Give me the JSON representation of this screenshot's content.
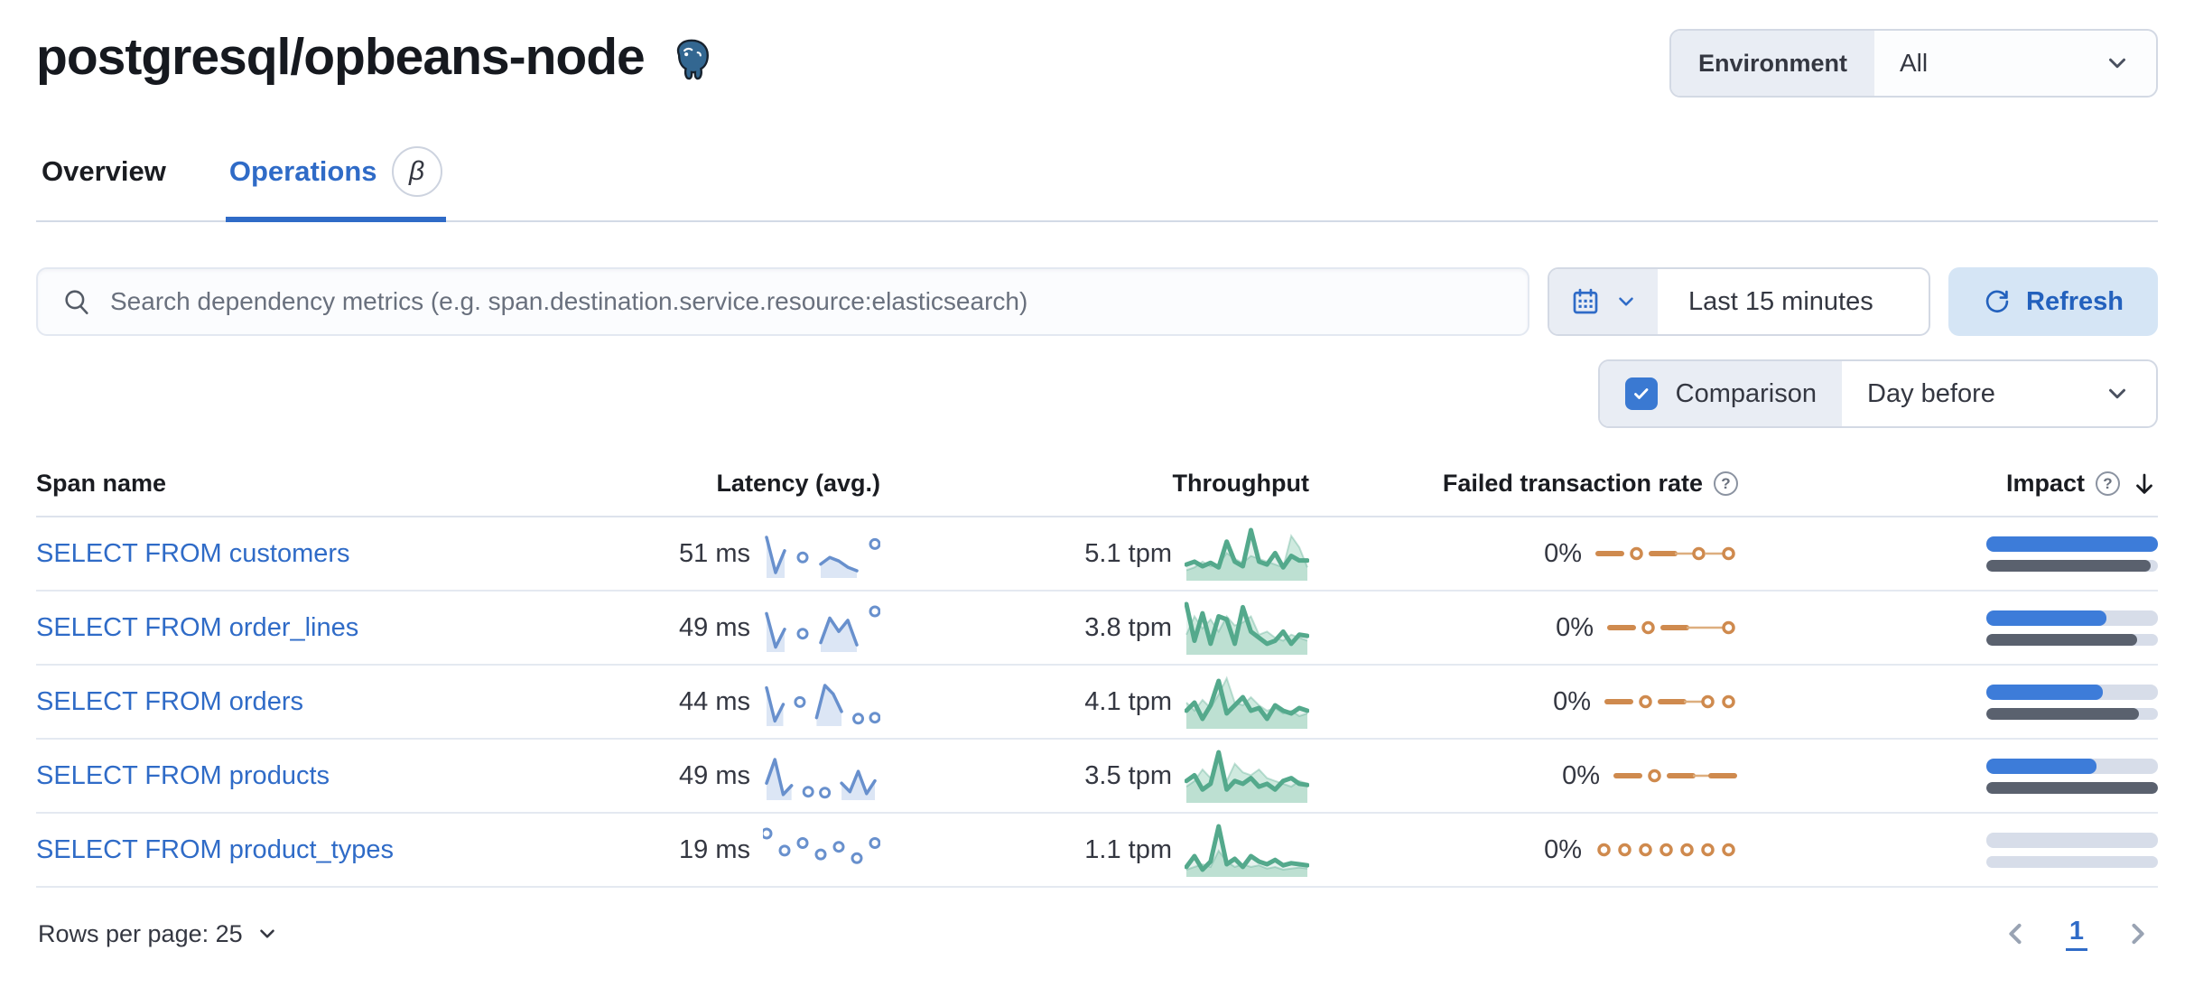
{
  "page": {
    "title": "postgresql/opbeans-node"
  },
  "env_filter": {
    "label": "Environment",
    "value": "All"
  },
  "tabs": [
    {
      "label": "Overview",
      "active": false
    },
    {
      "label": "Operations",
      "active": true,
      "beta": "β"
    }
  ],
  "search": {
    "placeholder": "Search dependency metrics (e.g. span.destination.service.resource:elasticsearch)"
  },
  "time_picker": {
    "value": "Last 15 minutes"
  },
  "refresh": {
    "label": "Refresh"
  },
  "comparison": {
    "label": "Comparison",
    "value": "Day before",
    "checked": true
  },
  "table": {
    "columns": [
      {
        "label": "Span name"
      },
      {
        "label": "Latency (avg.)"
      },
      {
        "label": "Throughput"
      },
      {
        "label": "Failed transaction rate",
        "help_icon": true
      },
      {
        "label": "Impact",
        "help_icon": true,
        "sorted": "desc"
      }
    ],
    "rows": [
      {
        "span_name": "SELECT FROM customers",
        "latency": "51 ms",
        "latency_series": [
          85,
          6,
          55,
          null,
          40,
          null,
          25,
          40,
          32,
          18,
          10,
          null,
          70
        ],
        "throughput": "5.1 tpm",
        "throughput_series": {
          "current": [
            25,
            30,
            22,
            28,
            20,
            65,
            30,
            22,
            85,
            30,
            25,
            45,
            20,
            40,
            32,
            32
          ],
          "previous": [
            15,
            20,
            30,
            22,
            25,
            45,
            35,
            28,
            40,
            35,
            30,
            25,
            20,
            75,
            55,
            20
          ]
        },
        "failed_rate": "0%",
        "failed_pattern": [
          "dash",
          "dot",
          "dash",
          "line",
          "dot",
          "line",
          "dot"
        ],
        "impact": {
          "current_pct": 100,
          "previous_pct": 96
        }
      },
      {
        "span_name": "SELECT FROM order_lines",
        "latency": "49 ms",
        "latency_series": [
          80,
          5,
          45,
          null,
          35,
          null,
          15,
          70,
          40,
          65,
          10,
          null,
          85
        ],
        "throughput": "3.8 tpm",
        "throughput_series": {
          "current": [
            80,
            20,
            65,
            15,
            60,
            55,
            15,
            75,
            35,
            25,
            15,
            20,
            35,
            15,
            30,
            28
          ],
          "previous": [
            30,
            60,
            40,
            55,
            35,
            60,
            45,
            50,
            60,
            30,
            35,
            25,
            20,
            30,
            25,
            20
          ]
        },
        "failed_rate": "0%",
        "failed_pattern": [
          "dash",
          "dot",
          "dash",
          "line",
          "line",
          "dot"
        ],
        "impact": {
          "current_pct": 70,
          "previous_pct": 88
        }
      },
      {
        "span_name": "SELECT FROM orders",
        "latency": "44 ms",
        "latency_series": [
          75,
          5,
          40,
          null,
          45,
          null,
          12,
          80,
          62,
          25,
          null,
          10,
          null,
          12
        ],
        "throughput": "4.1 tpm",
        "throughput_series": {
          "current": [
            30,
            45,
            15,
            40,
            85,
            25,
            40,
            55,
            30,
            35,
            15,
            40,
            30,
            25,
            35,
            30
          ],
          "previous": [
            45,
            30,
            50,
            35,
            60,
            90,
            45,
            40,
            55,
            40,
            30,
            35,
            25,
            30,
            20,
            25
          ]
        },
        "failed_rate": "0%",
        "failed_pattern": [
          "dash",
          "dot",
          "dash",
          "line",
          "dot",
          "dot"
        ],
        "impact": {
          "current_pct": 68,
          "previous_pct": 89
        }
      },
      {
        "span_name": "SELECT FROM products",
        "latency": "49 ms",
        "latency_series": [
          30,
          80,
          6,
          25,
          null,
          12,
          null,
          10,
          null,
          30,
          12,
          55,
          8,
          35
        ],
        "throughput": "3.5 tpm",
        "throughput_series": {
          "current": [
            35,
            45,
            20,
            30,
            85,
            20,
            35,
            30,
            40,
            25,
            30,
            20,
            35,
            40,
            30,
            28
          ],
          "previous": [
            25,
            35,
            55,
            40,
            70,
            35,
            65,
            50,
            45,
            55,
            40,
            35,
            30,
            25,
            35,
            30
          ]
        },
        "failed_rate": "0%",
        "failed_pattern": [
          "dash",
          "dot",
          "dash",
          "line",
          "dash"
        ],
        "impact": {
          "current_pct": 64,
          "previous_pct": 100
        }
      },
      {
        "span_name": "SELECT FROM product_types",
        "latency": "19 ms",
        "latency_series": [
          40,
          null,
          22,
          null,
          30,
          null,
          18,
          null,
          26,
          null,
          14,
          null,
          30
        ],
        "throughput": "1.1 tpm",
        "throughput_series": {
          "current": [
            15,
            35,
            10,
            25,
            90,
            20,
            30,
            15,
            35,
            25,
            20,
            28,
            18,
            22,
            20,
            18
          ],
          "previous": [
            10,
            15,
            20,
            15,
            45,
            25,
            15,
            20,
            15,
            18,
            12,
            15,
            10,
            12,
            14,
            12
          ]
        },
        "failed_rate": "0%",
        "failed_pattern": [
          "dot",
          "dot",
          "dot",
          "dot",
          "dot",
          "dot",
          "dot"
        ],
        "impact": {
          "current_pct": 0,
          "previous_pct": 0
        }
      }
    ]
  },
  "footer": {
    "rows_per_page": "Rows per page: 25",
    "current_page": "1"
  },
  "colors": {
    "primary_blue": "#2f6bc7",
    "latency_line": "#6890cd",
    "latency_fill": "#dce6f5",
    "throughput_green": "#54a98c",
    "throughput_prev_fill": "#a8d8c4",
    "failed_orange": "#cf8a4e",
    "failed_orange_light": "#ddae7e",
    "impact_bar_blue": "#3d7cd9",
    "impact_bar_prev": "#5a616e"
  }
}
